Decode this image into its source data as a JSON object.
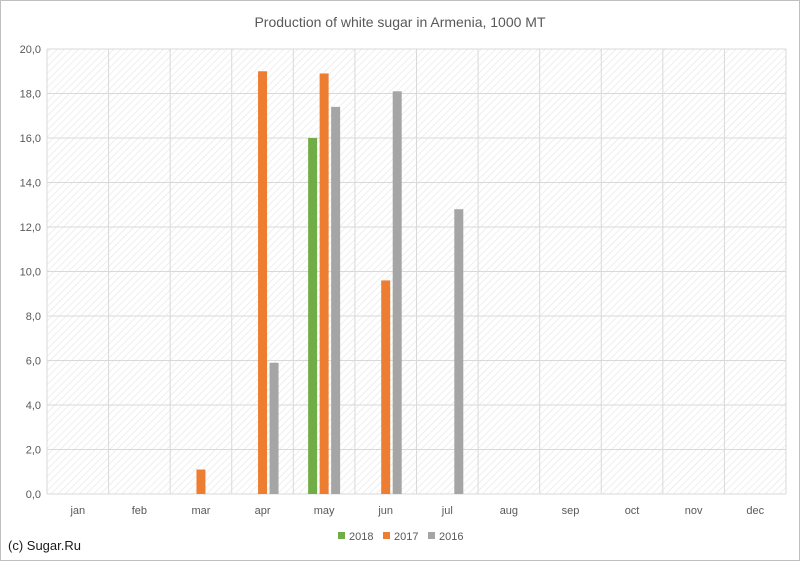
{
  "chart_data": {
    "type": "bar",
    "title": "Production of white sugar in Armenia, 1000 MT",
    "xlabel": "",
    "ylabel": "",
    "categories": [
      "jan",
      "feb",
      "mar",
      "apr",
      "may",
      "jun",
      "jul",
      "aug",
      "sep",
      "oct",
      "nov",
      "dec"
    ],
    "ylim": [
      0,
      20
    ],
    "yticks": [
      "0,0",
      "2,0",
      "4,0",
      "6,0",
      "8,0",
      "10,0",
      "12,0",
      "14,0",
      "16,0",
      "18,0",
      "20,0"
    ],
    "grid": true,
    "legend_position": "bottom",
    "series": [
      {
        "name": "2018",
        "color": "#70ad47",
        "values": [
          null,
          null,
          null,
          null,
          16.0,
          null,
          null,
          null,
          null,
          null,
          null,
          null
        ]
      },
      {
        "name": "2017",
        "color": "#ed7d31",
        "values": [
          null,
          null,
          1.1,
          19.0,
          18.9,
          9.6,
          null,
          null,
          null,
          null,
          null,
          null
        ]
      },
      {
        "name": "2016",
        "color": "#a5a5a5",
        "values": [
          null,
          null,
          null,
          5.9,
          17.4,
          18.1,
          12.8,
          null,
          null,
          null,
          null,
          null
        ]
      }
    ]
  },
  "credit": "(c) Sugar.Ru"
}
